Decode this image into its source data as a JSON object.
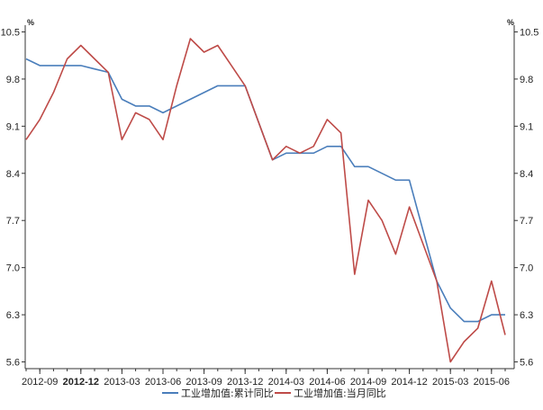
{
  "chart_data": {
    "type": "line",
    "y_unit_left": "%",
    "y_unit_right": "%",
    "ylim": [
      5.5,
      10.6
    ],
    "yticks": [
      5.6,
      6.3,
      7.0,
      7.7,
      8.4,
      9.1,
      9.8,
      10.5
    ],
    "ytick_labels": [
      "5.6",
      "6.3",
      "7.0",
      "7.7",
      "8.4",
      "9.1",
      "9.8",
      "10.5"
    ],
    "x": [
      "2012-08",
      "2012-09",
      "2012-10",
      "2012-11",
      "2012-12",
      "2013-01",
      "2013-02",
      "2013-03",
      "2013-04",
      "2013-05",
      "2013-06",
      "2013-07",
      "2013-08",
      "2013-09",
      "2013-10",
      "2013-11",
      "2013-12",
      "2014-01",
      "2014-02",
      "2014-03",
      "2014-04",
      "2014-05",
      "2014-06",
      "2014-07",
      "2014-08",
      "2014-09",
      "2014-10",
      "2014-11",
      "2014-12",
      "2015-01",
      "2015-02",
      "2015-03",
      "2015-04",
      "2015-05",
      "2015-06",
      "2015-07"
    ],
    "xtick_labels": [
      "2012-09",
      "2012-12",
      "2013-03",
      "2013-06",
      "2013-09",
      "2013-12",
      "2014-03",
      "2014-06",
      "2014-09",
      "2014-12",
      "2015-03",
      "2015-06"
    ],
    "xtick_bold": [
      "2012-12"
    ],
    "series": [
      {
        "name": "工业增加值:累计同比",
        "color": "#4a7ebb",
        "values": [
          10.1,
          10.0,
          10.0,
          10.0,
          10.0,
          9.95,
          9.9,
          9.5,
          9.4,
          9.4,
          9.3,
          9.4,
          9.5,
          9.6,
          9.7,
          9.7,
          9.7,
          9.15,
          8.6,
          8.7,
          8.7,
          8.7,
          8.8,
          8.8,
          8.5,
          8.5,
          8.4,
          8.3,
          8.3,
          7.55,
          6.8,
          6.4,
          6.2,
          6.2,
          6.3,
          6.3
        ]
      },
      {
        "name": "工业增加值:当月同比",
        "color": "#be4b48",
        "values": [
          8.9,
          9.2,
          9.6,
          10.1,
          10.3,
          10.1,
          9.9,
          8.9,
          9.3,
          9.2,
          8.9,
          9.7,
          10.4,
          10.2,
          10.3,
          10.0,
          9.7,
          9.15,
          8.6,
          8.8,
          8.7,
          8.8,
          9.2,
          9.0,
          6.9,
          8.0,
          7.7,
          7.2,
          7.9,
          7.35,
          6.8,
          5.6,
          5.9,
          6.1,
          6.8,
          6.0
        ]
      }
    ],
    "legend": {
      "position": "bottom",
      "entries": [
        "工业增加值:累计同比",
        "工业增加值:当月同比"
      ]
    },
    "grid": false
  }
}
